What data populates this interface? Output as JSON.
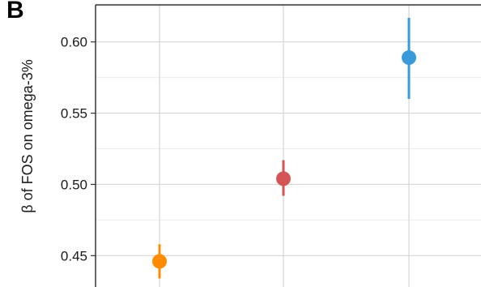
{
  "chart_data": {
    "type": "scatter",
    "panel_label": "B",
    "ylabel": "β of FOS on omega-3%",
    "xlabel": "",
    "ylim": [
      0.428,
      0.626
    ],
    "yticks": [
      0.45,
      0.5,
      0.55,
      0.6
    ],
    "ytick_labels": [
      "0.45",
      "0.50",
      "0.55",
      "0.60"
    ],
    "grid": true,
    "points": [
      {
        "x": 1,
        "y": 0.446,
        "lower": 0.434,
        "upper": 0.458,
        "color": "#ff8c00"
      },
      {
        "x": 2,
        "y": 0.504,
        "lower": 0.492,
        "upper": 0.517,
        "color": "#d45555"
      },
      {
        "x": 3,
        "y": 0.589,
        "lower": 0.56,
        "upper": 0.617,
        "color": "#3a9ad9"
      }
    ]
  }
}
